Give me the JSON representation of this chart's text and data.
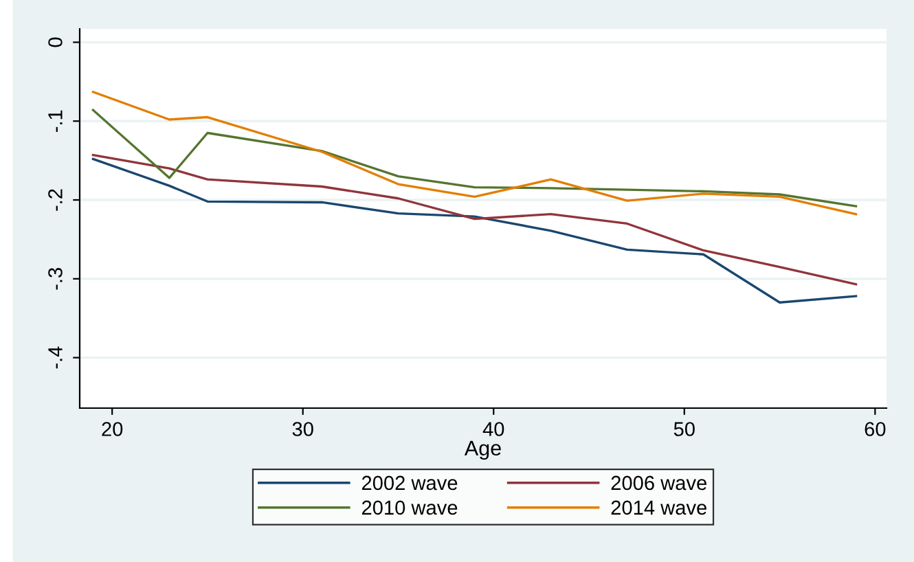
{
  "chart_data": {
    "type": "line",
    "xlabel": "Age",
    "x": [
      19,
      23,
      25,
      31,
      35,
      39,
      43,
      47,
      51,
      55,
      59
    ],
    "series": [
      {
        "name": "2002 wave",
        "color": "#1a476f",
        "values": [
          -0.148,
          -0.182,
          -0.202,
          -0.203,
          -0.217,
          -0.221,
          -0.239,
          -0.263,
          -0.269,
          -0.33,
          -0.322
        ]
      },
      {
        "name": "2006 wave",
        "color": "#90353b",
        "values": [
          -0.143,
          -0.16,
          -0.174,
          -0.183,
          -0.198,
          -0.224,
          -0.218,
          -0.23,
          -0.264,
          -0.285,
          -0.307
        ]
      },
      {
        "name": "2010 wave",
        "color": "#55752f",
        "values": [
          -0.086,
          -0.172,
          -0.115,
          -0.138,
          -0.17,
          -0.184,
          -0.185,
          -0.187,
          -0.189,
          -0.193,
          -0.208
        ]
      },
      {
        "name": "2014 wave",
        "color": "#e37e00",
        "values": [
          -0.063,
          -0.098,
          -0.095,
          -0.139,
          -0.18,
          -0.196,
          -0.174,
          -0.201,
          -0.192,
          -0.196,
          -0.218
        ]
      }
    ],
    "xlim": [
      18.3,
      60.6
    ],
    "xticks": [
      20,
      30,
      40,
      50,
      60
    ],
    "ylim": [
      -0.464,
      0.017
    ],
    "yticks": [
      0,
      {
        "value": -0.1,
        "label": "-.1"
      },
      {
        "value": -0.2,
        "label": "-.2"
      },
      {
        "value": -0.3,
        "label": "-.3"
      },
      {
        "value": -0.4,
        "label": "-.4"
      }
    ],
    "grid": "y",
    "legend": "bottom",
    "marker": "none",
    "line_style": "solid"
  }
}
